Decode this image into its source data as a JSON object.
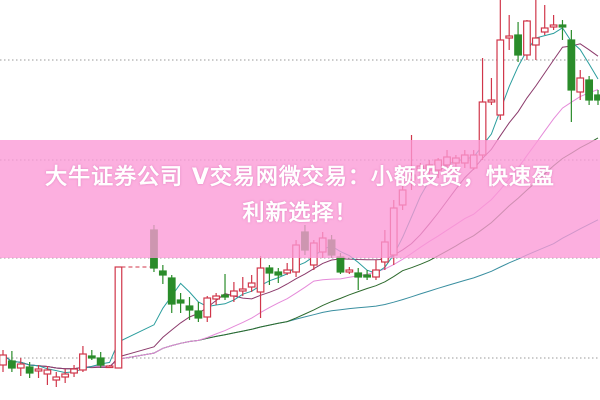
{
  "banner": {
    "line1": "大牛证券公司 V交易网微交易：小额投资，快速盈",
    "line2": "利新选择！",
    "color": "#fb98d6"
  },
  "chart_data": {
    "type": "candlestick",
    "title": "",
    "xlabel": "",
    "ylabel": "",
    "ylim": [
      0,
      40
    ],
    "grid": "dotted horizontal lines",
    "gridlines": [
      4.2,
      14.2,
      24,
      34
    ],
    "candle_format": [
      "open",
      "close",
      "high",
      "low"
    ],
    "colors": {
      "up": "#d0364a",
      "down": "#2a8c2a",
      "ma5": "#2a9d9d",
      "ma10": "#8b3a6b",
      "ma20": "#e58ad9",
      "ma30": "#2d6a2d",
      "ma60": "#3a8fa0"
    },
    "moving_averages": [
      5,
      10,
      20,
      30,
      60
    ],
    "candles": [
      [
        3.5,
        4.5,
        5.0,
        2.8
      ],
      [
        3.9,
        3.2,
        4.9,
        2.8
      ],
      [
        3.2,
        3.6,
        4.2,
        2.4
      ],
      [
        3.3,
        2.7,
        3.8,
        2.2
      ],
      [
        2.9,
        3.1,
        3.5,
        2.2
      ],
      [
        2.6,
        3.0,
        3.4,
        1.5
      ],
      [
        2.0,
        2.3,
        2.8,
        1.3
      ],
      [
        2.3,
        2.6,
        3.1,
        1.7
      ],
      [
        2.7,
        3.1,
        3.5,
        2.3
      ],
      [
        3.0,
        4.6,
        5.4,
        2.8
      ],
      [
        4.4,
        4.2,
        5.0,
        4.0
      ],
      [
        4.2,
        3.5,
        4.8,
        3.2
      ],
      [
        3.4,
        3.4,
        3.5,
        3.3
      ],
      [
        3.2,
        13.3,
        13.3,
        3.2
      ],
      null,
      null,
      null,
      [
        17.0,
        13.2,
        17.5,
        12.8
      ],
      [
        12.9,
        12.5,
        13.5,
        11.6
      ],
      [
        12.2,
        9.6,
        12.5,
        8.7
      ],
      [
        10.0,
        9.7,
        10.7,
        8.7
      ],
      [
        9.4,
        9.0,
        10.3,
        8.0
      ],
      [
        8.9,
        8.2,
        9.8,
        7.8
      ],
      [
        8.3,
        10.2,
        10.4,
        7.8
      ],
      [
        10.1,
        10.4,
        10.7,
        9.5
      ],
      [
        10.5,
        10.3,
        12.6,
        10.0
      ],
      [
        10.4,
        10.9,
        11.8,
        9.8
      ],
      [
        10.9,
        11.1,
        12.3,
        10.4
      ],
      [
        11.3,
        11.7,
        12.5,
        10.8
      ],
      [
        10.8,
        13.2,
        14.4,
        8.2
      ],
      [
        13.2,
        12.7,
        13.5,
        11.5
      ],
      [
        12.8,
        12.5,
        13.2,
        11.7
      ],
      [
        12.7,
        13.0,
        13.7,
        12.5
      ],
      [
        12.8,
        15.5,
        16.0,
        12.3
      ],
      [
        16.8,
        15.0,
        17.5,
        14.5
      ],
      [
        13.5,
        15.7,
        16.0,
        13.0
      ],
      [
        14.8,
        16.2,
        16.8,
        14.2
      ],
      [
        16.0,
        14.5,
        16.5,
        14.2
      ],
      [
        14.3,
        12.8,
        14.7,
        12.6
      ],
      [
        12.8,
        13.0,
        13.3,
        12.6
      ],
      [
        12.7,
        12.3,
        13.2,
        11.0
      ],
      [
        12.5,
        12.3,
        13.0,
        12.0
      ],
      [
        12.3,
        13.0,
        14.0,
        12.0
      ],
      [
        13.8,
        15.8,
        17.0,
        13.0
      ],
      [
        14.5,
        19.2,
        20.0,
        13.5
      ],
      [
        19.5,
        21.0,
        22.0,
        19.0
      ],
      [
        22.0,
        22.5,
        26.5,
        21.0
      ],
      [
        23.0,
        23.4,
        23.7,
        22.5
      ],
      [
        23.0,
        23.5,
        24.0,
        22.2
      ],
      [
        23.0,
        24.0,
        24.2,
        22.2
      ],
      [
        23.5,
        24.3,
        25.0,
        23.0
      ],
      [
        23.7,
        24.2,
        24.5,
        23.2
      ],
      [
        23.7,
        24.5,
        25.0,
        23.2
      ],
      [
        23.2,
        24.5,
        25.0,
        23.0
      ],
      [
        24.5,
        29.8,
        34.2,
        24.0
      ],
      [
        29.8,
        30.0,
        32.2,
        29.5
      ],
      [
        28.5,
        36.0,
        40.0,
        28.0
      ],
      [
        36.2,
        36.4,
        38.5,
        35.0
      ],
      [
        36.5,
        34.5,
        37.8,
        33.8
      ],
      [
        34.5,
        37.9,
        38.0,
        34.0
      ],
      [
        35.5,
        36.2,
        40.0,
        34.0
      ],
      [
        36.8,
        37.2,
        39.5,
        36.5
      ],
      [
        37.3,
        37.5,
        38.5,
        37.0
      ],
      [
        37.5,
        37.3,
        38.0,
        36.0
      ],
      [
        36.0,
        31.0,
        37.0,
        27.8
      ],
      [
        30.8,
        32.2,
        33.0,
        30.0
      ],
      [
        32.0,
        30.0,
        32.4,
        29.5
      ],
      [
        30.5,
        30.0,
        31.0,
        29.5
      ]
    ]
  }
}
